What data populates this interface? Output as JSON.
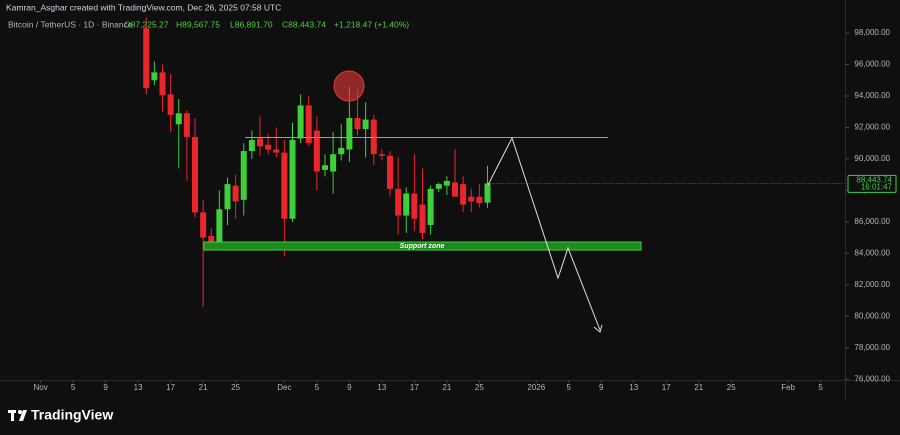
{
  "chart_data": {
    "type": "candlestick",
    "creator_note": "Kamran_Asghar created with TradingView.com, Dec 26, 2025 07:58 UTC",
    "title": "Bitcoin / TetherUS · 1D · Binance",
    "ohlc_labels": [
      "O87,225.27",
      "H89,567.75",
      "L86,891.70",
      "C88,443.74",
      "+1,218.47 (+1.40%)"
    ],
    "last_price_label": "88,443.74",
    "countdown": "16:01:47",
    "annotation": "Support zone",
    "brand": "TradingView",
    "up_color": "#3fcf3a",
    "down_color": "#e8262b",
    "x": [
      "2025-11-14",
      "2025-11-15",
      "2025-11-16",
      "2025-11-17",
      "2025-11-18",
      "2025-11-19",
      "2025-11-20",
      "2025-11-21",
      "2025-11-22",
      "2025-11-23",
      "2025-11-24",
      "2025-11-25",
      "2025-11-26",
      "2025-11-27",
      "2025-11-28",
      "2025-11-29",
      "2025-11-30",
      "2025-12-01",
      "2025-12-02",
      "2025-12-03",
      "2025-12-04",
      "2025-12-05",
      "2025-12-06",
      "2025-12-07",
      "2025-12-08",
      "2025-12-09",
      "2025-12-10",
      "2025-12-11",
      "2025-12-12",
      "2025-12-13",
      "2025-12-14",
      "2025-12-15",
      "2025-12-16",
      "2025-12-17",
      "2025-12-18",
      "2025-12-19",
      "2025-12-20",
      "2025-12-21",
      "2025-12-22",
      "2025-12-23",
      "2025-12-24",
      "2025-12-25",
      "2025-12-26"
    ],
    "open": [
      98300,
      95000,
      95500,
      94100,
      92200,
      92900,
      91400,
      86600,
      85100,
      84700,
      86800,
      88300,
      87400,
      90500,
      91300,
      90900,
      90600,
      90400,
      86200,
      91300,
      93400,
      91800,
      89300,
      89200,
      90300,
      90600,
      92600,
      91900,
      92500,
      90300,
      90200,
      88100,
      86400,
      87800,
      87100,
      85800,
      88100,
      88300,
      88500,
      88400,
      87600,
      87600,
      87225.27
    ],
    "high": [
      99000,
      96200,
      96000,
      95400,
      93800,
      93100,
      92600,
      87400,
      85600,
      88000,
      88800,
      89000,
      91000,
      91800,
      92700,
      91600,
      92000,
      91200,
      92300,
      94100,
      94000,
      92700,
      90300,
      91700,
      92200,
      94600,
      94400,
      93600,
      92800,
      90600,
      90500,
      90100,
      88200,
      90300,
      89400,
      88300,
      88500,
      88900,
      90600,
      88900,
      88100,
      88400,
      89567.75
    ],
    "low": [
      94100,
      94700,
      93000,
      91700,
      89400,
      88600,
      86300,
      80600,
      84600,
      84600,
      85800,
      86200,
      86400,
      90000,
      90200,
      90300,
      90100,
      83800,
      86000,
      91000,
      90800,
      88000,
      88900,
      87800,
      89900,
      89800,
      91500,
      90100,
      89600,
      89900,
      87600,
      85200,
      85300,
      85400,
      84900,
      85200,
      87900,
      87700,
      87600,
      86600,
      86600,
      86900,
      86891.7
    ],
    "close": [
      94500,
      95500,
      94050,
      92800,
      92900,
      91400,
      86600,
      85000,
      84700,
      86800,
      88400,
      87300,
      90500,
      91200,
      90800,
      90600,
      90400,
      86200,
      91200,
      93400,
      91000,
      89200,
      89600,
      90300,
      90700,
      92600,
      91900,
      92500,
      90300,
      90200,
      88100,
      86400,
      87800,
      86200,
      85300,
      88100,
      88400,
      88600,
      87600,
      87100,
      87300,
      87200,
      88443.74
    ],
    "xlim": [
      "2025-10-27",
      "2026-02-08"
    ],
    "xticks": [
      {
        "value": "2025-11-01",
        "label": "Nov"
      },
      {
        "value": "2025-11-05",
        "label": "5"
      },
      {
        "value": "2025-11-09",
        "label": "9"
      },
      {
        "value": "2025-11-13",
        "label": "13"
      },
      {
        "value": "2025-11-17",
        "label": "17"
      },
      {
        "value": "2025-11-21",
        "label": "21"
      },
      {
        "value": "2025-11-25",
        "label": "25"
      },
      {
        "value": "2025-12-01",
        "label": "Dec"
      },
      {
        "value": "2025-12-05",
        "label": "5"
      },
      {
        "value": "2025-12-09",
        "label": "9"
      },
      {
        "value": "2025-12-13",
        "label": "13"
      },
      {
        "value": "2025-12-17",
        "label": "17"
      },
      {
        "value": "2025-12-21",
        "label": "21"
      },
      {
        "value": "2025-12-25",
        "label": "25"
      },
      {
        "value": "2026-01-01",
        "label": "2026"
      },
      {
        "value": "2026-01-05",
        "label": "5"
      },
      {
        "value": "2026-01-09",
        "label": "9"
      },
      {
        "value": "2026-01-13",
        "label": "13"
      },
      {
        "value": "2026-01-17",
        "label": "17"
      },
      {
        "value": "2026-01-21",
        "label": "21"
      },
      {
        "value": "2026-01-25",
        "label": "25"
      },
      {
        "value": "2026-02-01",
        "label": "Feb"
      },
      {
        "value": "2026-02-05",
        "label": "5"
      }
    ],
    "ylim": [
      75950,
      100100
    ],
    "yticks": [
      {
        "value": 76000,
        "label": "76,000.00"
      },
      {
        "value": 78000,
        "label": "78,000.00"
      },
      {
        "value": 80000,
        "label": "80,000.00"
      },
      {
        "value": 82000,
        "label": "82,000.00"
      },
      {
        "value": 84000,
        "label": "84,000.00"
      },
      {
        "value": 86000,
        "label": "86,000.00"
      },
      {
        "value": 88000,
        "label": "88,000.00"
      },
      {
        "value": 90000,
        "label": "90,000.00"
      },
      {
        "value": 92000,
        "label": "92,000.00"
      },
      {
        "value": 94000,
        "label": "94,000.00"
      },
      {
        "value": 96000,
        "label": "96,000.00"
      },
      {
        "value": 98000,
        "label": "98,000.00"
      }
    ]
  }
}
